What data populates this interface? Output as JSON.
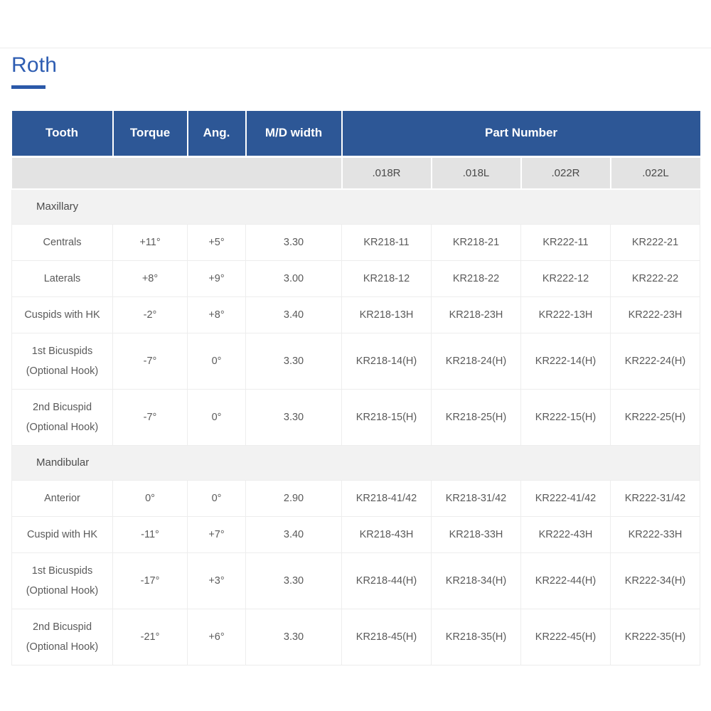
{
  "page": {
    "title": "Roth"
  },
  "colors": {
    "accent_blue": "#2e5db2",
    "header_blue": "#2d5796",
    "subheader_gray": "#e3e3e3",
    "section_gray": "#f2f2f2"
  },
  "table": {
    "columns": [
      {
        "label": "Tooth"
      },
      {
        "label": "Torque"
      },
      {
        "label": "Ang."
      },
      {
        "label": "M/D width"
      }
    ],
    "part_number_label": "Part Number",
    "part_number_subcolumns": [
      ".018R",
      ".018L",
      ".022R",
      ".022L"
    ],
    "sections": [
      {
        "label": "Maxillary",
        "rows": [
          {
            "tooth": [
              "Centrals"
            ],
            "torque": "+11°",
            "ang": "+5°",
            "md_width": "3.30",
            "parts": [
              "KR218-11",
              "KR218-21",
              "KR222-11",
              "KR222-21"
            ]
          },
          {
            "tooth": [
              "Laterals"
            ],
            "torque": "+8°",
            "ang": "+9°",
            "md_width": "3.00",
            "parts": [
              "KR218-12",
              "KR218-22",
              "KR222-12",
              "KR222-22"
            ]
          },
          {
            "tooth": [
              "Cuspids with HK"
            ],
            "torque": "-2°",
            "ang": "+8°",
            "md_width": "3.40",
            "parts": [
              "KR218-13H",
              "KR218-23H",
              "KR222-13H",
              "KR222-23H"
            ]
          },
          {
            "tooth": [
              "1st Bicuspids",
              "(Optional Hook)"
            ],
            "torque": "-7°",
            "ang": "0°",
            "md_width": "3.30",
            "parts": [
              "KR218-14(H)",
              "KR218-24(H)",
              "KR222-14(H)",
              "KR222-24(H)"
            ]
          },
          {
            "tooth": [
              "2nd Bicuspid",
              "(Optional Hook)"
            ],
            "torque": "-7°",
            "ang": "0°",
            "md_width": "3.30",
            "parts": [
              "KR218-15(H)",
              "KR218-25(H)",
              "KR222-15(H)",
              "KR222-25(H)"
            ]
          }
        ]
      },
      {
        "label": "Mandibular",
        "rows": [
          {
            "tooth": [
              "Anterior"
            ],
            "torque": "0°",
            "ang": "0°",
            "md_width": "2.90",
            "parts": [
              "KR218-41/42",
              "KR218-31/42",
              "KR222-41/42",
              "KR222-31/42"
            ]
          },
          {
            "tooth": [
              "Cuspid with HK"
            ],
            "torque": "-11°",
            "ang": "+7°",
            "md_width": "3.40",
            "parts": [
              "KR218-43H",
              "KR218-33H",
              "KR222-43H",
              "KR222-33H"
            ]
          },
          {
            "tooth": [
              "1st Bicuspids",
              "(Optional Hook)"
            ],
            "torque": "-17°",
            "ang": "+3°",
            "md_width": "3.30",
            "parts": [
              "KR218-44(H)",
              "KR218-34(H)",
              "KR222-44(H)",
              "KR222-34(H)"
            ]
          },
          {
            "tooth": [
              "2nd Bicuspid",
              "(Optional Hook)"
            ],
            "torque": "-21°",
            "ang": "+6°",
            "md_width": "3.30",
            "parts": [
              "KR218-45(H)",
              "KR218-35(H)",
              "KR222-45(H)",
              "KR222-35(H)"
            ]
          }
        ]
      }
    ]
  }
}
